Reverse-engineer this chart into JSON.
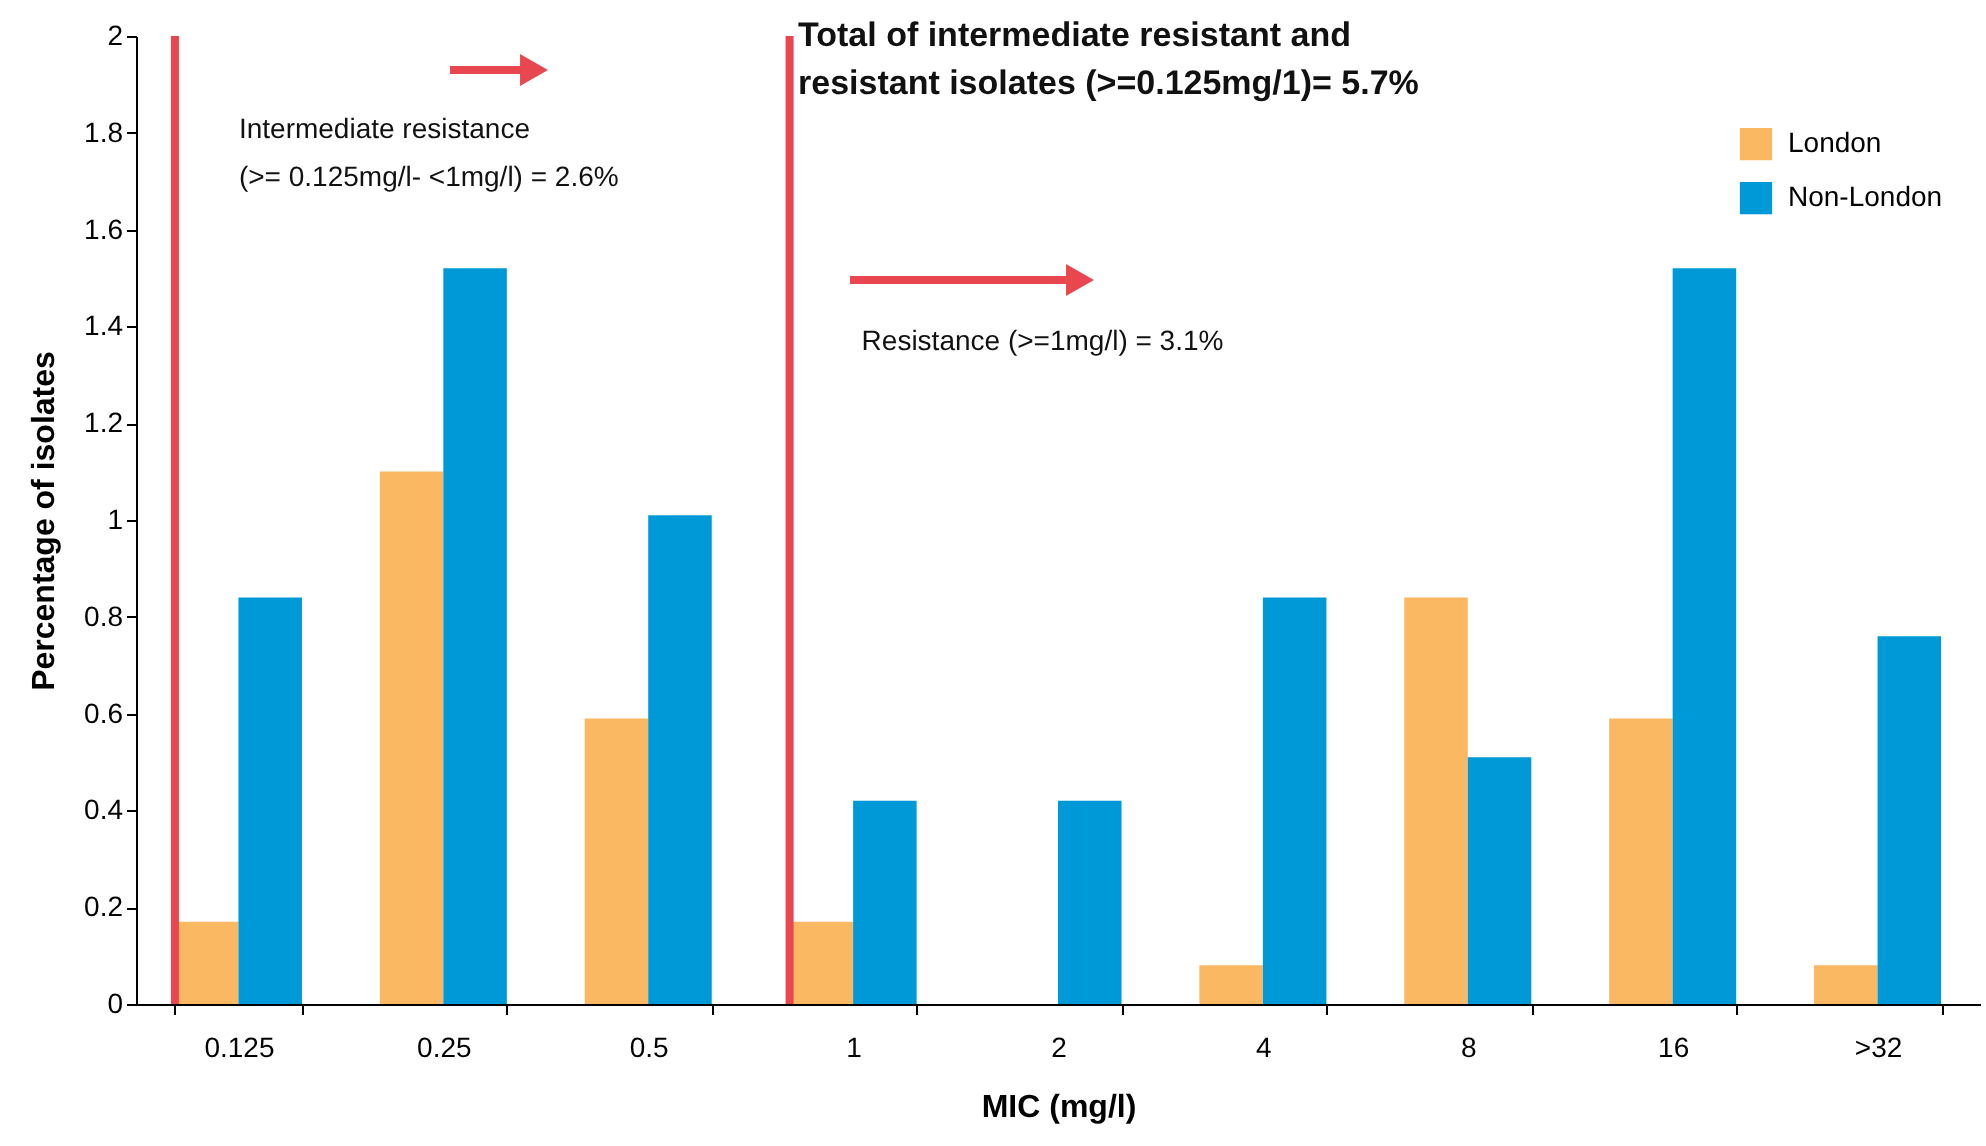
{
  "chart_data": {
    "type": "bar",
    "title": "Total of intermediate resistant and\nresistant isolates (>=0.125mg/1)= 5.7%",
    "xlabel": "MIC (mg/l)",
    "ylabel": "Percentage of isolates",
    "categories": [
      "0.125",
      "0.25",
      "0.5",
      "1",
      "2",
      "4",
      "8",
      "16",
      ">32"
    ],
    "series": [
      {
        "name": "London",
        "color": "#fbb862",
        "values": [
          0.17,
          1.1,
          0.59,
          0.17,
          0,
          0.08,
          0.84,
          0.59,
          0.08
        ]
      },
      {
        "name": "Non-London",
        "color": "#0099d8",
        "values": [
          0.84,
          1.52,
          1.01,
          0.42,
          0.42,
          0.84,
          0.51,
          1.52,
          0.76
        ]
      }
    ],
    "ylim": [
      0,
      2
    ],
    "yticks": [
      0,
      0.2,
      0.4,
      0.6,
      0.8,
      1,
      1.2,
      1.4,
      1.6,
      1.8,
      2
    ],
    "ref_lines": [
      {
        "axis": "x",
        "value": "0.125",
        "label": "Intermediate resistance\n(>= 0.125mg/l- <1mg/l) = 2.6%",
        "color": "#e8474f"
      },
      {
        "axis": "x",
        "value": "1",
        "label": "Resistance (>=1mg/l) = 3.1%",
        "color": "#e8474f"
      }
    ],
    "grid": false,
    "legend": "top right"
  }
}
